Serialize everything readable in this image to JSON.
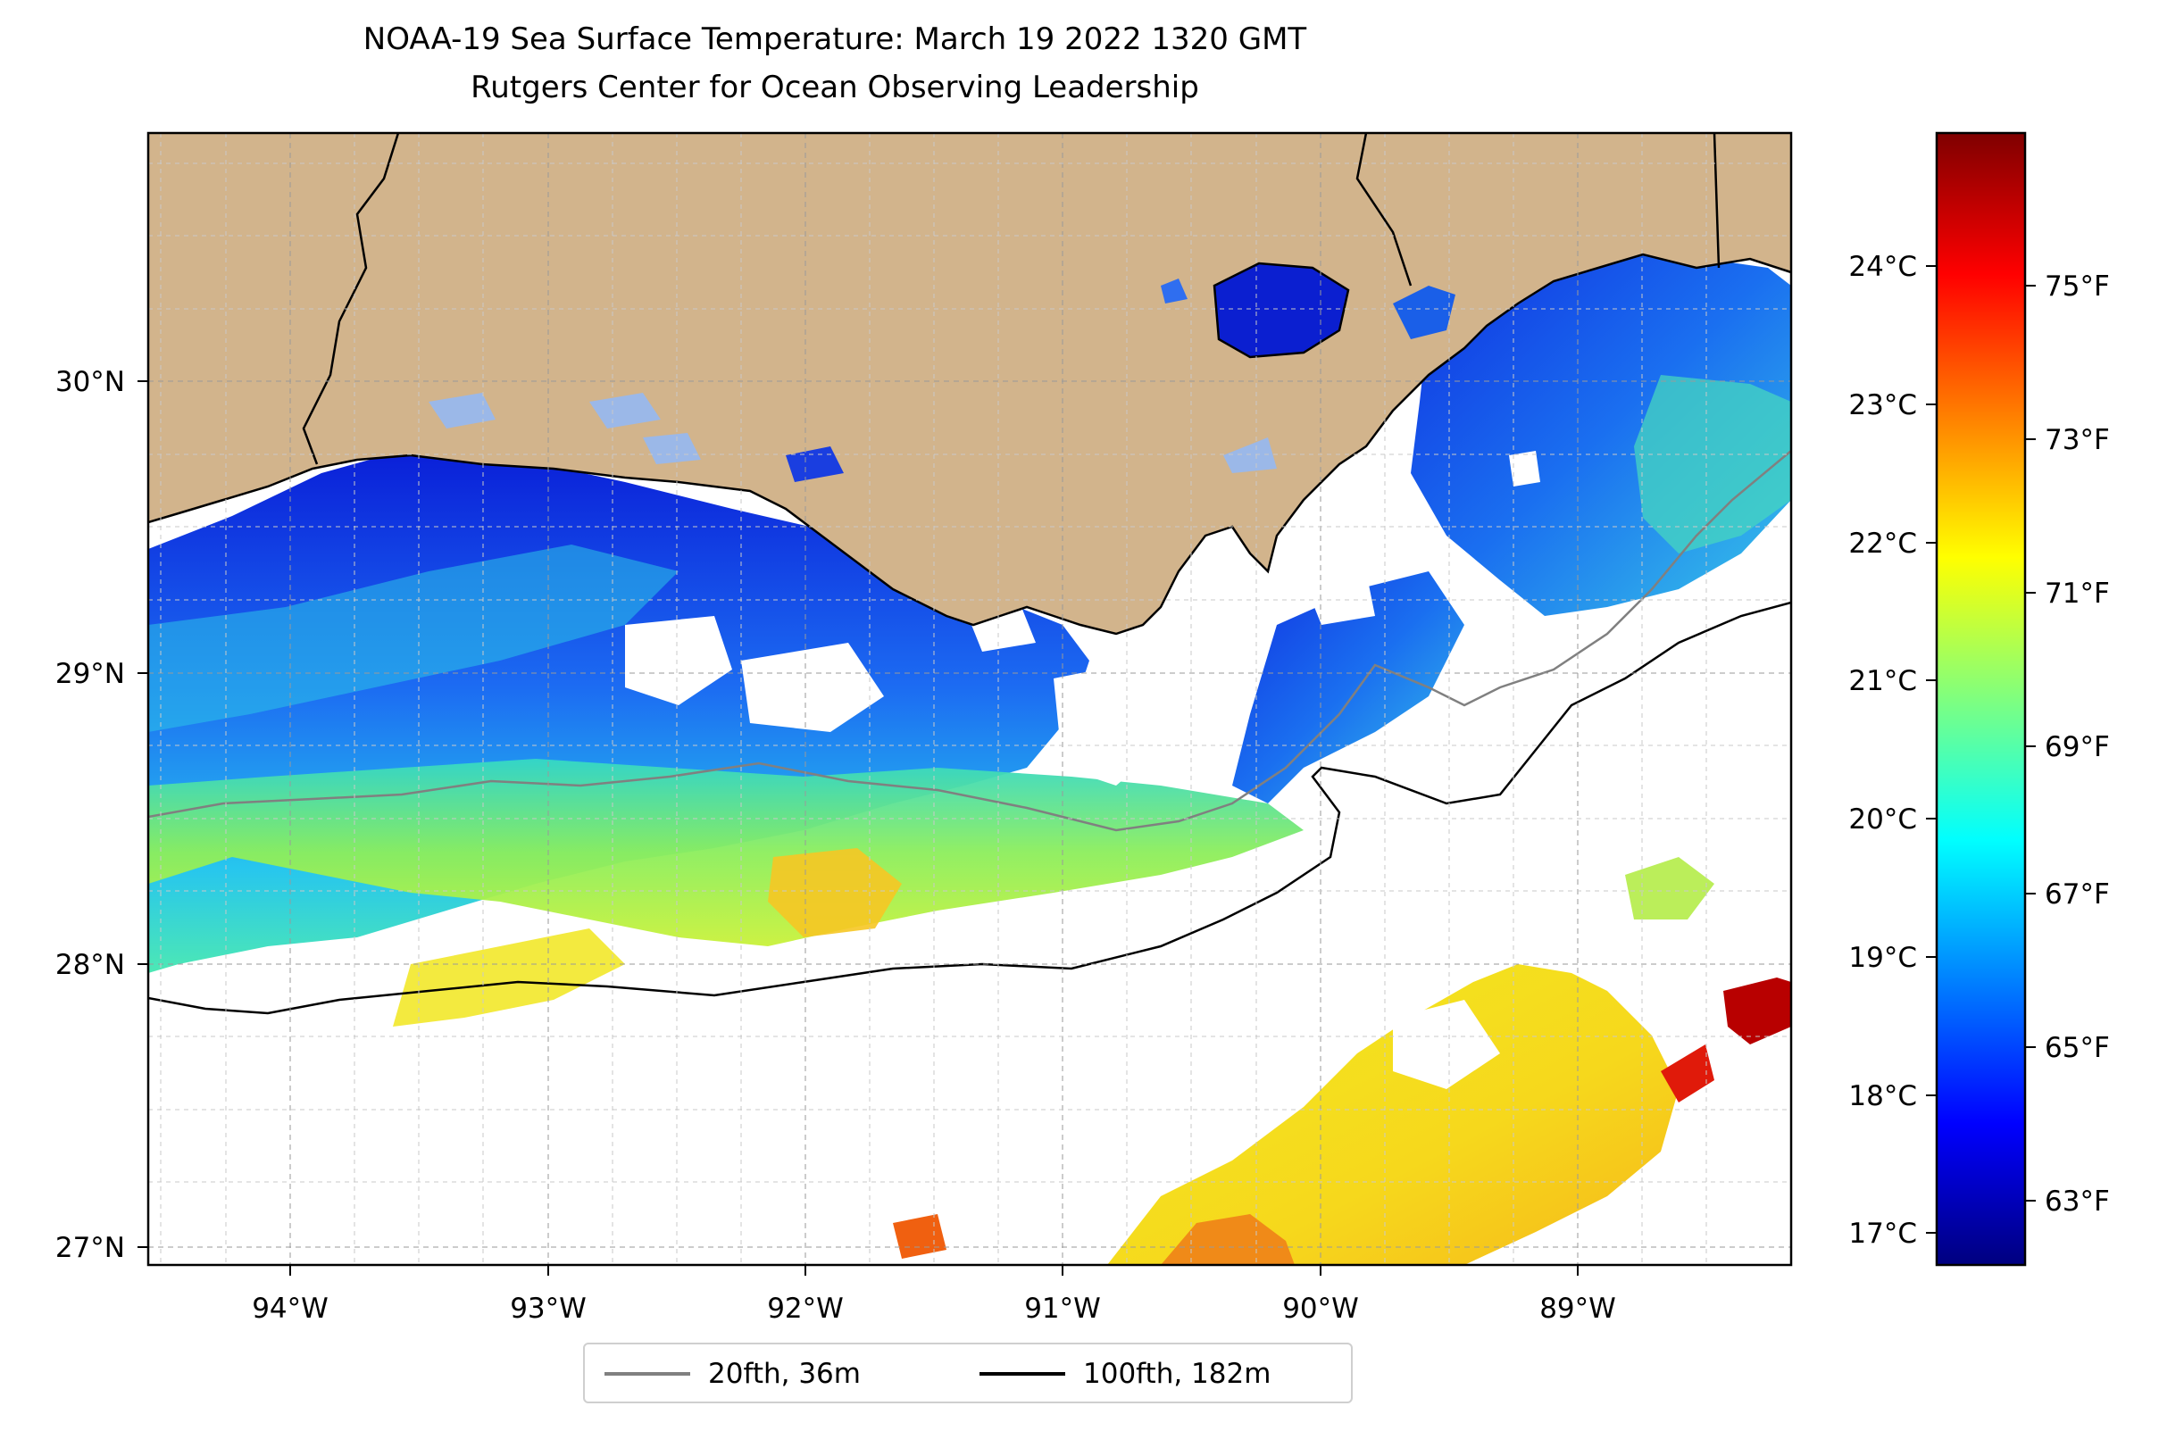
{
  "title": "NOAA-19 Sea Surface Temperature: March 19 2022 1320 GMT",
  "subtitle": "Rutgers Center for Ocean Observing Leadership",
  "map": {
    "lon_ticks": [
      "94°W",
      "93°W",
      "92°W",
      "91°W",
      "90°W",
      "89°W"
    ],
    "lat_ticks": [
      "30°N",
      "29°N",
      "28°N",
      "27°N"
    ],
    "extent": {
      "lon_min": -94.55,
      "lon_max": -88.2,
      "lat_min": 26.93,
      "lat_max": 30.84
    },
    "land_color": "#D2B48C",
    "grid": true
  },
  "colorbar": {
    "celsius_ticks": [
      "24°C",
      "23°C",
      "22°C",
      "21°C",
      "20°C",
      "19°C",
      "18°C",
      "17°C"
    ],
    "fahrenheit_ticks": [
      "75°F",
      "73°F",
      "71°F",
      "69°F",
      "67°F",
      "65°F",
      "63°F"
    ],
    "colormap": "jet",
    "range_celsius": [
      16.8,
      25.0
    ]
  },
  "legend": {
    "items": [
      {
        "label": "20fth, 36m",
        "color": "#808080"
      },
      {
        "label": "100fth, 182m",
        "color": "#000000"
      }
    ]
  }
}
